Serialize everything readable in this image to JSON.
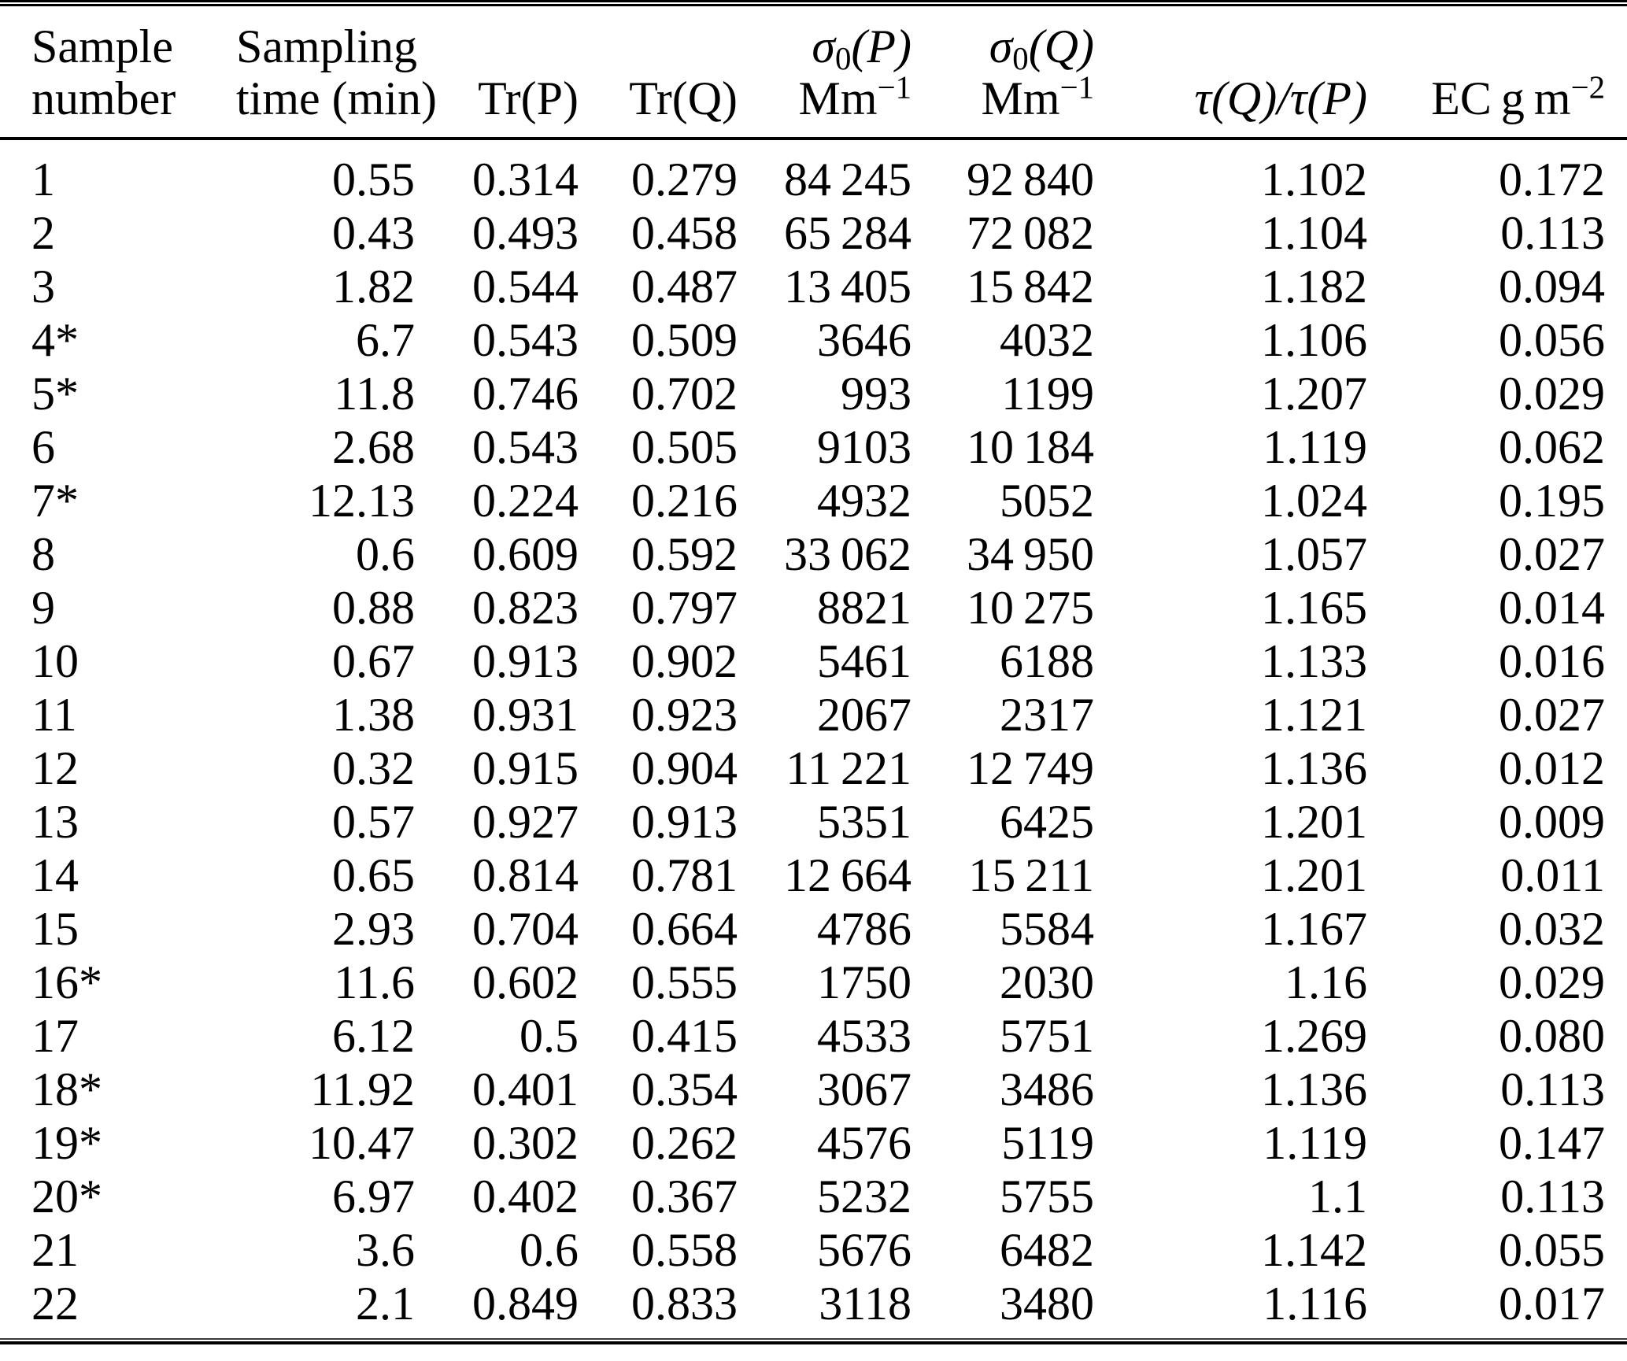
{
  "table": {
    "header": {
      "col1": {
        "line1": "Sample",
        "line2": "number"
      },
      "col2": {
        "line1": "Sampling",
        "line2": "time (min)"
      },
      "col3": {
        "label": "Tr(P)"
      },
      "col4": {
        "label": "Tr(Q)"
      },
      "col5": {
        "sigma": "σ",
        "sub": "0",
        "arg": "(P)",
        "unit_base": "Mm",
        "unit_sup": "−1"
      },
      "col6": {
        "sigma": "σ",
        "sub": "0",
        "arg": "(Q)",
        "unit_base": "Mm",
        "unit_sup": "−1"
      },
      "col7": {
        "label": "τ(Q)/τ(P)"
      },
      "col8": {
        "base": "EC g m",
        "sup": "−2"
      }
    },
    "rows": [
      [
        "1",
        "0.55",
        "0.314",
        "0.279",
        "84 245",
        "92 840",
        "1.102",
        "0.172"
      ],
      [
        "2",
        "0.43",
        "0.493",
        "0.458",
        "65 284",
        "72 082",
        "1.104",
        "0.113"
      ],
      [
        "3",
        "1.82",
        "0.544",
        "0.487",
        "13 405",
        "15 842",
        "1.182",
        "0.094"
      ],
      [
        "4*",
        "6.7",
        "0.543",
        "0.509",
        "3646",
        "4032",
        "1.106",
        "0.056"
      ],
      [
        "5*",
        "11.8",
        "0.746",
        "0.702",
        "993",
        "1199",
        "1.207",
        "0.029"
      ],
      [
        "6",
        "2.68",
        "0.543",
        "0.505",
        "9103",
        "10 184",
        "1.119",
        "0.062"
      ],
      [
        "7*",
        "12.13",
        "0.224",
        "0.216",
        "4932",
        "5052",
        "1.024",
        "0.195"
      ],
      [
        "8",
        "0.6",
        "0.609",
        "0.592",
        "33 062",
        "34 950",
        "1.057",
        "0.027"
      ],
      [
        "9",
        "0.88",
        "0.823",
        "0.797",
        "8821",
        "10 275",
        "1.165",
        "0.014"
      ],
      [
        "10",
        "0.67",
        "0.913",
        "0.902",
        "5461",
        "6188",
        "1.133",
        "0.016"
      ],
      [
        "11",
        "1.38",
        "0.931",
        "0.923",
        "2067",
        "2317",
        "1.121",
        "0.027"
      ],
      [
        "12",
        "0.32",
        "0.915",
        "0.904",
        "11 221",
        "12 749",
        "1.136",
        "0.012"
      ],
      [
        "13",
        "0.57",
        "0.927",
        "0.913",
        "5351",
        "6425",
        "1.201",
        "0.009"
      ],
      [
        "14",
        "0.65",
        "0.814",
        "0.781",
        "12 664",
        "15 211",
        "1.201",
        "0.011"
      ],
      [
        "15",
        "2.93",
        "0.704",
        "0.664",
        "4786",
        "5584",
        "1.167",
        "0.032"
      ],
      [
        "16*",
        "11.6",
        "0.602",
        "0.555",
        "1750",
        "2030",
        "1.16",
        "0.029"
      ],
      [
        "17",
        "6.12",
        "0.5",
        "0.415",
        "4533",
        "5751",
        "1.269",
        "0.080"
      ],
      [
        "18*",
        "11.92",
        "0.401",
        "0.354",
        "3067",
        "3486",
        "1.136",
        "0.113"
      ],
      [
        "19*",
        "10.47",
        "0.302",
        "0.262",
        "4576",
        "5119",
        "1.119",
        "0.147"
      ],
      [
        "20*",
        "6.97",
        "0.402",
        "0.367",
        "5232",
        "5755",
        "1.1",
        "0.113"
      ],
      [
        "21",
        "3.6",
        "0.6",
        "0.558",
        "5676",
        "6482",
        "1.142",
        "0.055"
      ],
      [
        "22",
        "2.1",
        "0.849",
        "0.833",
        "3118",
        "3480",
        "1.116",
        "0.017"
      ]
    ]
  }
}
